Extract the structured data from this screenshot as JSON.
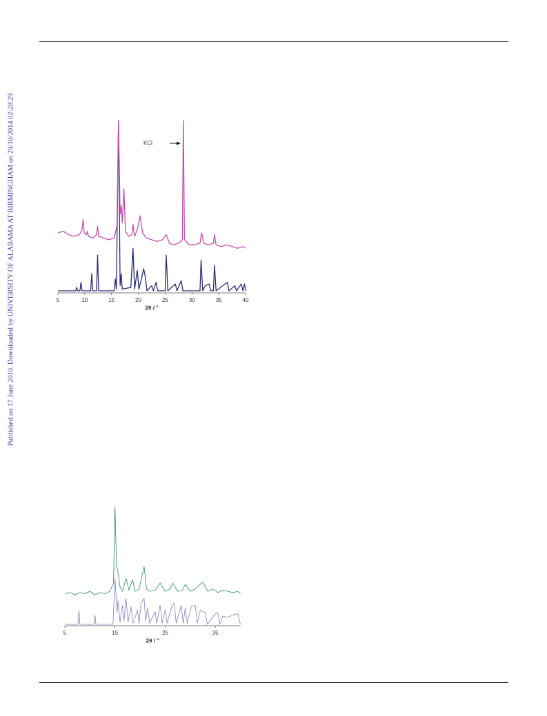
{
  "sidebar": "Published on 17 June 2010. Downloaded by UNIVERSITY OF ALABAMA AT BIRMINGHAM on 29/10/2014 02:28:29.",
  "chart_data": [
    {
      "type": "line",
      "x_label": "2θ / °",
      "annotation": "KCl",
      "xlim": [
        5,
        40
      ],
      "xticks": [
        5,
        10,
        15,
        20,
        25,
        30,
        35,
        40
      ],
      "series": [
        {
          "color": "#2b2b72",
          "x": [
            5,
            8.3,
            8.5,
            8.7,
            9.1,
            9.3,
            9.5,
            11.1,
            11.3,
            11.5,
            12.2,
            12.4,
            12.6,
            15.5,
            15.7,
            15.9,
            16.3,
            16.6,
            16.8,
            17.0,
            18.6,
            19.0,
            19.3,
            19.8,
            20.1,
            20.5,
            21.0,
            21.3,
            21.6,
            22.5,
            22.8,
            23.3,
            23.6,
            25.0,
            25.2,
            25.5,
            26.9,
            27.2,
            28.0,
            28.3,
            31.5,
            31.7,
            32.0,
            32.5,
            33.2,
            33.5,
            34.0,
            34.2,
            34.5,
            36.6,
            36.9,
            38.0,
            38.3,
            39.2,
            39.5,
            39.8,
            40
          ],
          "values": [
            0,
            0,
            2,
            0,
            0,
            5,
            0,
            0,
            10,
            0,
            0,
            21,
            0,
            0,
            7,
            1,
            100,
            3,
            10,
            1,
            2,
            25,
            1,
            12,
            1,
            6,
            13,
            8,
            0,
            3,
            0,
            5,
            0,
            0,
            21,
            0,
            4,
            0,
            6,
            0,
            0,
            18,
            0,
            3,
            4,
            0,
            0,
            15,
            0,
            5,
            0,
            3,
            0,
            4,
            0,
            4,
            0
          ]
        },
        {
          "color": "#c04eb0",
          "x": [
            5,
            6,
            7,
            8,
            9,
            9.5,
            9.7,
            9.9,
            10.3,
            10.5,
            10.7,
            11.5,
            12.2,
            12.4,
            12.6,
            13.5,
            14.5,
            15.5,
            16.0,
            16.3,
            16.6,
            16.8,
            17.0,
            17.3,
            17.6,
            18.2,
            18.8,
            19.0,
            19.3,
            19.8,
            20.3,
            20.8,
            21.5,
            22.5,
            23.5,
            24.5,
            25.2,
            25.8,
            26.5,
            27.5,
            28.2,
            28.4,
            28.6,
            29.5,
            30.5,
            31.5,
            31.8,
            32.2,
            33.0,
            34.0,
            34.2,
            34.5,
            35.5,
            36.5,
            37.5,
            38.5,
            39.5,
            40
          ],
          "values": [
            34,
            35,
            33,
            32,
            33,
            36,
            42,
            34,
            33,
            35,
            32,
            31,
            33,
            38,
            32,
            31,
            30,
            31,
            38,
            100,
            45,
            50,
            40,
            60,
            35,
            32,
            33,
            39,
            32,
            36,
            44,
            34,
            31,
            30,
            29,
            30,
            33,
            28,
            27,
            28,
            30,
            100,
            30,
            27,
            27,
            28,
            34,
            28,
            27,
            28,
            33,
            27,
            26,
            27,
            26,
            25,
            26,
            25
          ]
        }
      ]
    },
    {
      "type": "line",
      "x_label": "2θ / °",
      "xlim": [
        5,
        40
      ],
      "xticks": [
        5,
        15,
        25,
        35
      ],
      "series": [
        {
          "color": "#7f7fba",
          "x": [
            5,
            7.6,
            7.8,
            8.0,
            10.8,
            11.0,
            11.2,
            14.6,
            15.0,
            15.4,
            15.6,
            16.0,
            16.5,
            16.8,
            17.2,
            17.6,
            18.2,
            18.6,
            19.5,
            19.8,
            20.2,
            20.8,
            21.1,
            21.5,
            21.9,
            23.0,
            23.3,
            24.0,
            24.4,
            25.0,
            25.4,
            26.3,
            26.8,
            27.2,
            28.2,
            28.6,
            29.0,
            29.4,
            30.2,
            31.0,
            31.4,
            32.0,
            33.0,
            33.4,
            35.0,
            35.5,
            35.9,
            36.5,
            37.5,
            38.5,
            39.5,
            40
          ],
          "values": [
            0,
            0,
            12,
            0,
            0,
            8,
            0,
            0,
            39,
            10,
            20,
            2,
            16,
            3,
            22,
            2,
            15,
            1,
            12,
            1,
            18,
            22,
            3,
            14,
            1,
            11,
            1,
            16,
            1,
            12,
            1,
            15,
            18,
            1,
            16,
            1,
            14,
            1,
            15,
            16,
            1,
            12,
            10,
            0,
            9,
            10,
            0,
            7,
            6,
            8,
            9,
            0
          ]
        },
        {
          "color": "#2a8a5c",
          "x": [
            5,
            6,
            7,
            8,
            9,
            10,
            11,
            12,
            13,
            14,
            14.7,
            15.0,
            15.3,
            15.6,
            16.0,
            16.5,
            17.2,
            17.8,
            18.5,
            19.0,
            19.8,
            20.8,
            21.3,
            22.0,
            23.0,
            24.0,
            25.0,
            26.0,
            26.5,
            27.5,
            28.5,
            29.0,
            30.0,
            31.0,
            32.5,
            33.5,
            34.5,
            35.5,
            36.5,
            37.5,
            38.5,
            39.5,
            40
          ],
          "values": [
            26,
            27,
            25,
            27,
            26,
            28,
            25,
            27,
            26,
            28,
            35,
            100,
            50,
            44,
            32,
            28,
            39,
            29,
            38,
            28,
            30,
            49,
            30,
            28,
            29,
            35,
            28,
            30,
            35,
            28,
            29,
            34,
            28,
            30,
            36,
            28,
            30,
            27,
            29,
            28,
            27,
            28,
            26
          ]
        }
      ]
    }
  ]
}
